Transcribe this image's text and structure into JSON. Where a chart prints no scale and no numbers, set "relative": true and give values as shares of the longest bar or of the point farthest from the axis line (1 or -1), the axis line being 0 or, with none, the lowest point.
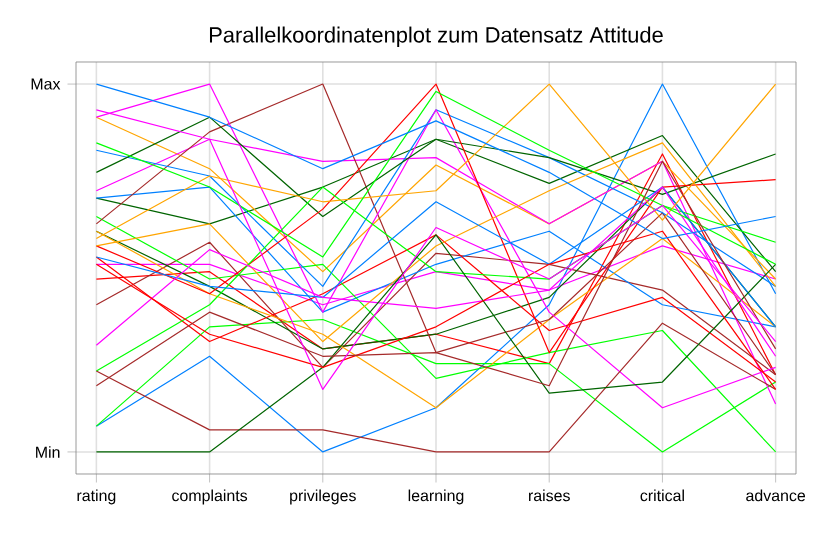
{
  "chart_data": {
    "type": "line",
    "title": "Parallelkoordinatenplot zum Datensatz Attitude",
    "categories": [
      "rating",
      "complaints",
      "privileges",
      "learning",
      "raises",
      "critical",
      "advance"
    ],
    "relative": true,
    "annotations": [
      "Min",
      "Max"
    ],
    "grid": true,
    "marker": "none",
    "line_style": "solid",
    "series": [
      {
        "color": "#0080ff",
        "values": [
          0.07,
          0.26,
          0,
          0.12,
          0.4,
          1,
          0.43
        ]
      },
      {
        "color": "#ff00ff",
        "values": [
          0.51,
          0.51,
          0.4,
          0.49,
          0.44,
          0.56,
          0.47
        ]
      },
      {
        "color": "#006400",
        "values": [
          0.69,
          0.62,
          0.72,
          0.85,
          0.73,
          0.86,
          0.49
        ]
      },
      {
        "color": "#ff0000",
        "values": [
          0.47,
          0.49,
          0.28,
          0.32,
          0.24,
          0.81,
          0.21
        ]
      },
      {
        "color": "#ffa500",
        "values": [
          0.91,
          0.77,
          0.49,
          0.78,
          0.62,
          0.79,
          0.47
        ]
      },
      {
        "color": "#00ff00",
        "values": [
          0.07,
          0.34,
          0.36,
          0.24,
          0.24,
          0,
          0.19
        ]
      },
      {
        "color": "#a52a2a",
        "values": [
          0.4,
          0.57,
          0.23,
          0.54,
          0.51,
          0.44,
          0.21
        ]
      },
      {
        "color": "#0080ff",
        "values": [
          0.69,
          0.72,
          0.38,
          0.51,
          0.6,
          0.4,
          0.34
        ]
      },
      {
        "color": "#ff00ff",
        "values": [
          0.71,
          0.85,
          0.79,
          0.8,
          0.62,
          0.79,
          0.13
        ]
      },
      {
        "color": "#006400",
        "values": [
          0.6,
          0.45,
          0.28,
          0.32,
          0.42,
          0.72,
          0.34
        ]
      },
      {
        "color": "#ff0000",
        "values": [
          0.53,
          0.3,
          0.43,
          0.59,
          0.33,
          0.42,
          0.19
        ]
      },
      {
        "color": "#ffa500",
        "values": [
          0.6,
          0.43,
          0.32,
          0.12,
          0.36,
          0.58,
          0.34
        ]
      },
      {
        "color": "#00ff00",
        "values": [
          0.64,
          0.47,
          0.51,
          0.2,
          0.27,
          0.33,
          0
        ]
      },
      {
        "color": "#a52a2a",
        "values": [
          0.62,
          0.87,
          1,
          0.27,
          0.36,
          0.65,
          0.21
        ]
      },
      {
        "color": "#0080ff",
        "values": [
          0.82,
          0.75,
          0.45,
          0.93,
          0.8,
          0.65,
          0.45
        ]
      },
      {
        "color": "#ff00ff",
        "values": [
          0.91,
          1,
          0.38,
          0.93,
          0.38,
          0.12,
          0.23
        ]
      },
      {
        "color": "#006400",
        "values": [
          0.76,
          0.91,
          0.64,
          0.85,
          0.8,
          0.7,
          0.81
        ]
      },
      {
        "color": "#ff0000",
        "values": [
          0.56,
          0.43,
          0.66,
          1,
          0.27,
          0.72,
          0.74
        ]
      },
      {
        "color": "#ffa500",
        "values": [
          0.56,
          0.62,
          0.3,
          0.56,
          0.71,
          0.84,
          0.45
        ]
      },
      {
        "color": "#00ff00",
        "values": [
          0.22,
          0.4,
          0.72,
          0.49,
          0.47,
          0.67,
          0.57
        ]
      },
      {
        "color": "#a52a2a",
        "values": [
          0.22,
          0.06,
          0.06,
          0,
          0,
          0.35,
          0.17
        ]
      },
      {
        "color": "#0080ff",
        "values": [
          0.53,
          0.45,
          0.42,
          0.68,
          0.51,
          0.72,
          0.34
        ]
      },
      {
        "color": "#ff00ff",
        "values": [
          0.29,
          0.55,
          0.42,
          0.39,
          0.44,
          0.72,
          0.26
        ]
      },
      {
        "color": "#006400",
        "values": [
          0,
          0,
          0.23,
          0.59,
          0.16,
          0.19,
          0.51
        ]
      },
      {
        "color": "#ff0000",
        "values": [
          0.51,
          0.32,
          0.23,
          0.34,
          0.51,
          0.6,
          0.17
        ]
      },
      {
        "color": "#ffa500",
        "values": [
          0.58,
          0.75,
          0.68,
          0.71,
          1,
          0.63,
          1
        ]
      },
      {
        "color": "#00ff00",
        "values": [
          0.84,
          0.72,
          0.53,
          0.98,
          0.82,
          0.67,
          0.51
        ]
      },
      {
        "color": "#a52a2a",
        "values": [
          0.18,
          0.38,
          0.26,
          0.27,
          0.18,
          0.79,
          0.28
        ]
      },
      {
        "color": "#0080ff",
        "values": [
          1,
          0.91,
          0.77,
          0.9,
          0.76,
          0.58,
          0.64
        ]
      },
      {
        "color": "#ff00ff",
        "values": [
          0.93,
          0.85,
          0.17,
          0.61,
          0.47,
          0.67,
          0.3
        ]
      }
    ]
  }
}
